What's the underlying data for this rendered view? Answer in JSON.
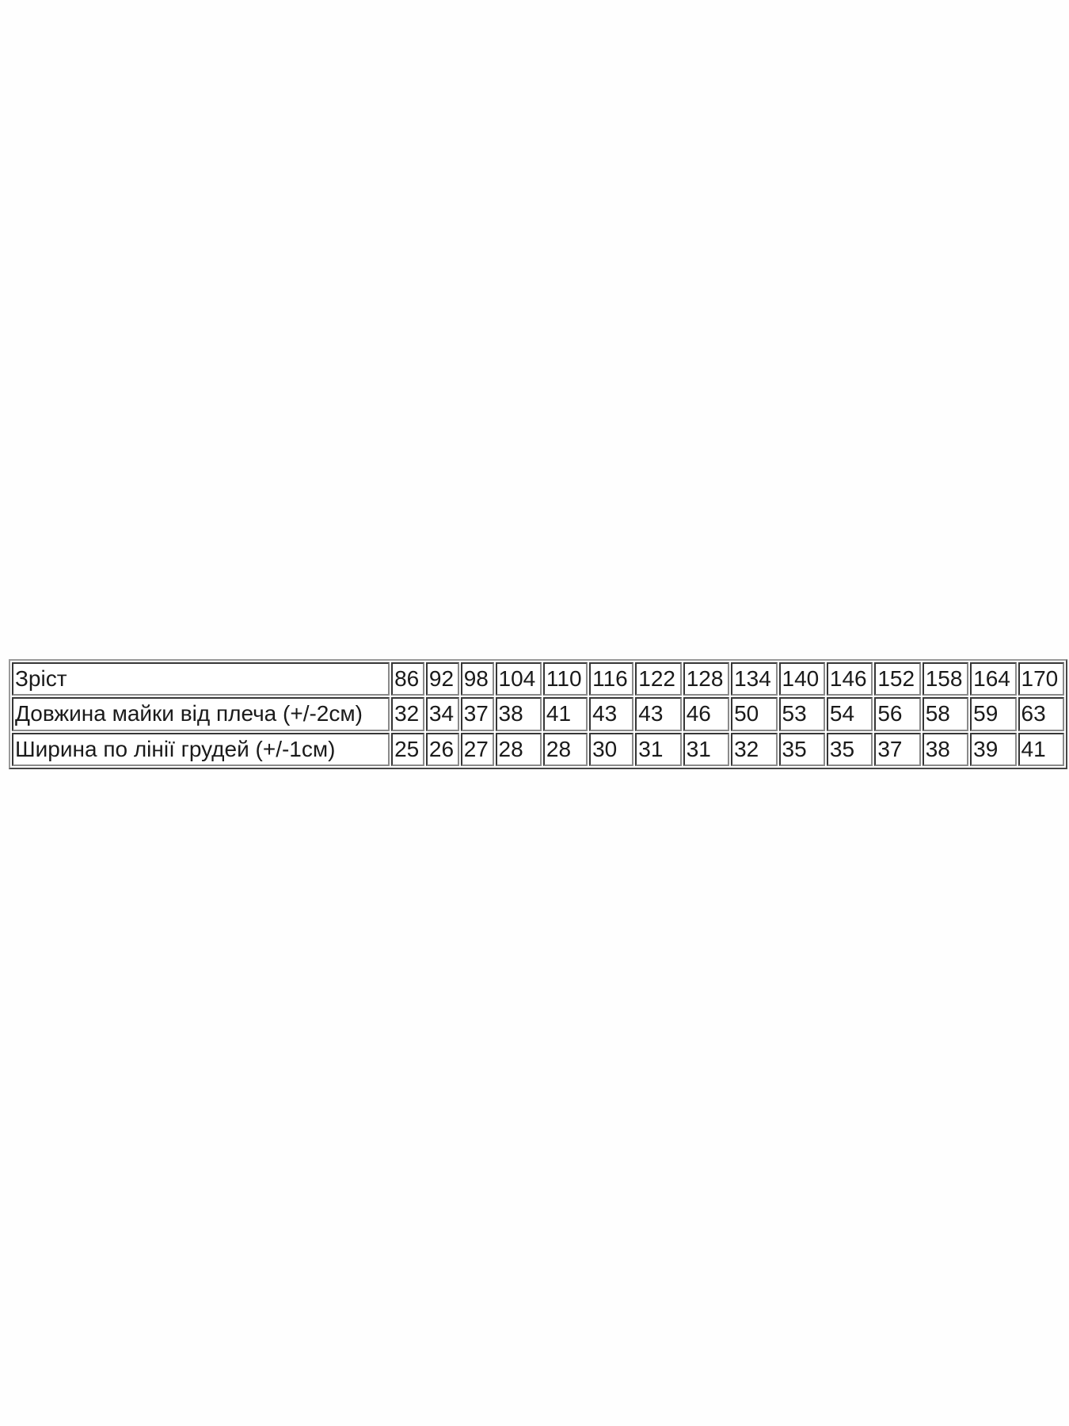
{
  "table": {
    "rows": [
      {
        "label": "Зріст",
        "values": [
          "86",
          "92",
          "98",
          "104",
          "110",
          "116",
          "122",
          "128",
          "134",
          "140",
          "146",
          "152",
          "158",
          "164",
          "170"
        ]
      },
      {
        "label": "Довжина майки від плеча (+/-2см)",
        "values": [
          "32",
          "34",
          "37",
          "38",
          "41",
          "43",
          "43",
          "46",
          "50",
          "53",
          "54",
          "56",
          "58",
          "59",
          "63"
        ]
      },
      {
        "label": "Ширина по лінії грудей (+/-1см)",
        "values": [
          "25",
          "26",
          "27",
          "28",
          "28",
          "30",
          "31",
          "31",
          "32",
          "35",
          "35",
          "37",
          "38",
          "39",
          "41"
        ]
      }
    ]
  }
}
